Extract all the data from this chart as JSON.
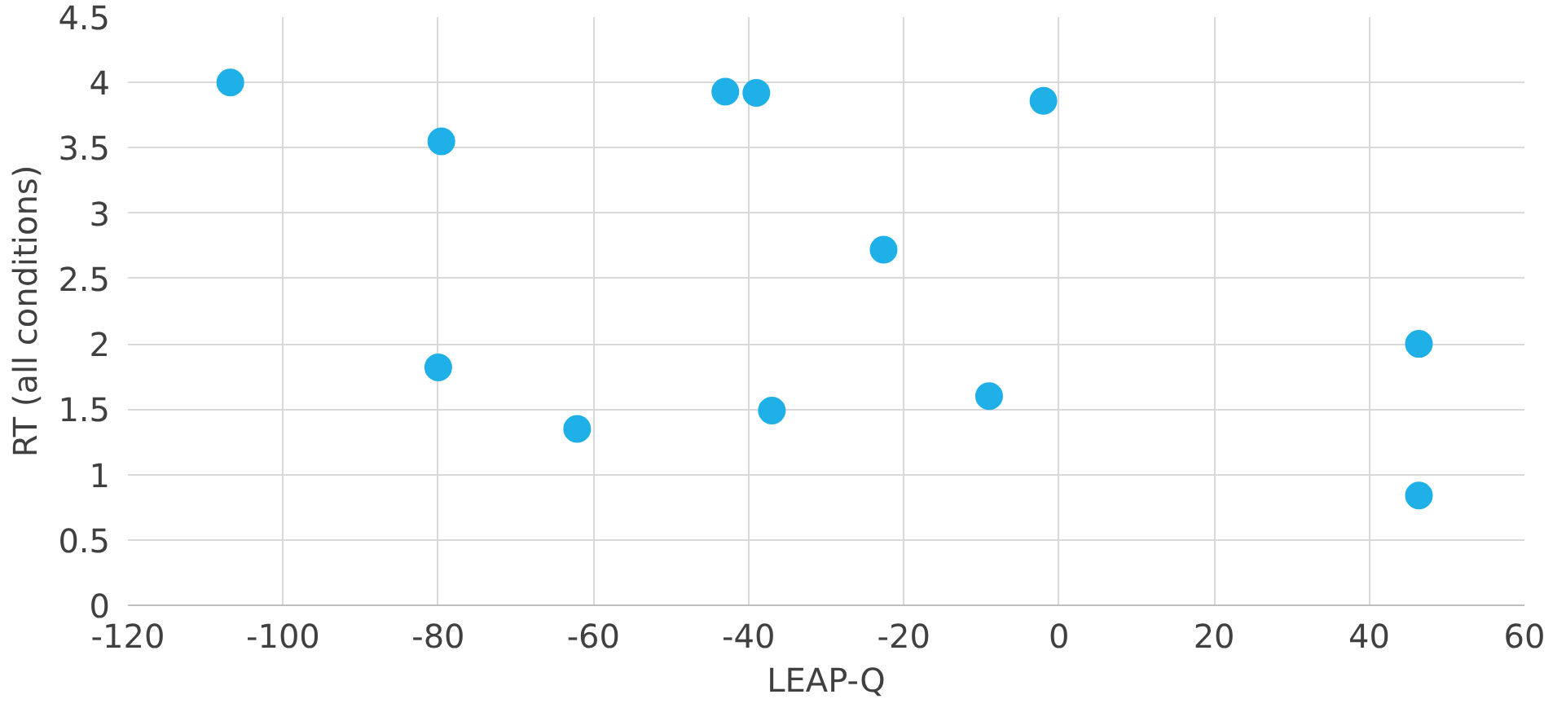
{
  "chart_data": {
    "type": "scatter",
    "xlabel": "LEAP-Q",
    "ylabel": "RT (all conditions)",
    "x": [
      -106.8,
      -79.6,
      -43,
      -39,
      -2,
      -22.6,
      46.4,
      -80,
      -62.1,
      -37,
      -9,
      46.4
    ],
    "series": [
      {
        "color": "#1eb0e6",
        "values": [
          4.0,
          3.55,
          3.93,
          3.92,
          3.86,
          2.72,
          2.0,
          1.82,
          1.35,
          1.49,
          1.6,
          0.84
        ]
      }
    ],
    "xlim": [
      -120,
      60
    ],
    "xticks": [
      -120,
      -100,
      -80,
      -60,
      -40,
      -20,
      0,
      20,
      40,
      60
    ],
    "ylim": [
      0,
      4.5
    ],
    "yticks": [
      0,
      0.5,
      1,
      1.5,
      2,
      2.5,
      3,
      3.5,
      4,
      4.5
    ],
    "grid": true,
    "marker": "circle"
  }
}
